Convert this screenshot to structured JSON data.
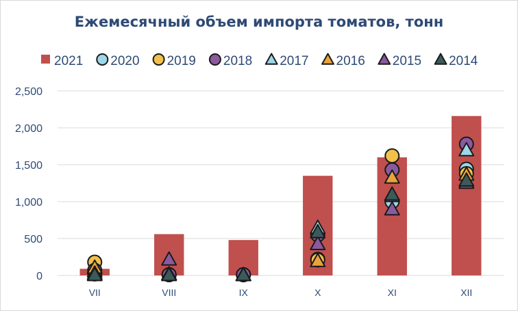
{
  "chart_data": {
    "type": "bar",
    "title": "Ежемесячный объем импорта томатов, тонн",
    "xlabel": "",
    "ylabel": "",
    "categories": [
      "VII",
      "VIII",
      "IX",
      "X",
      "XI",
      "XII"
    ],
    "ylim": [
      0,
      2500
    ],
    "yticks": [
      0,
      500,
      1000,
      1500,
      2000,
      2500
    ],
    "ytick_labels": [
      "0",
      "500",
      "1,000",
      "1,500",
      "2,000",
      "2,500"
    ],
    "grid": true,
    "legend_position": "top",
    "series": [
      {
        "name": "2021",
        "kind": "bar",
        "color": "#c0504d",
        "values": [
          90,
          560,
          480,
          1350,
          1600,
          2160
        ]
      },
      {
        "name": "2020",
        "kind": "marker",
        "marker": "circle",
        "color": "#9dd7e8",
        "values": [
          20,
          10,
          10,
          220,
          1000,
          1440
        ]
      },
      {
        "name": "2019",
        "kind": "marker",
        "marker": "circle",
        "color": "#f2c14b",
        "values": [
          180,
          10,
          10,
          210,
          1620,
          1380
        ]
      },
      {
        "name": "2018",
        "kind": "marker",
        "marker": "circle",
        "color": "#8a5a9e",
        "values": [
          70,
          10,
          10,
          550,
          1430,
          1780
        ]
      },
      {
        "name": "2017",
        "kind": "marker",
        "marker": "triangle",
        "color": "#9dd7e8",
        "values": [
          60,
          20,
          10,
          650,
          1080,
          1700
        ]
      },
      {
        "name": "2016",
        "kind": "marker",
        "marker": "triangle",
        "color": "#e8a33c",
        "values": [
          110,
          20,
          10,
          200,
          1330,
          1370
        ]
      },
      {
        "name": "2015",
        "kind": "marker",
        "marker": "triangle",
        "color": "#8a5a9e",
        "values": [
          30,
          220,
          10,
          430,
          900,
          1260
        ]
      },
      {
        "name": "2014",
        "kind": "marker",
        "marker": "triangle",
        "color": "#3c5a5a",
        "values": [
          10,
          10,
          10,
          590,
          1100,
          1290
        ]
      }
    ]
  }
}
